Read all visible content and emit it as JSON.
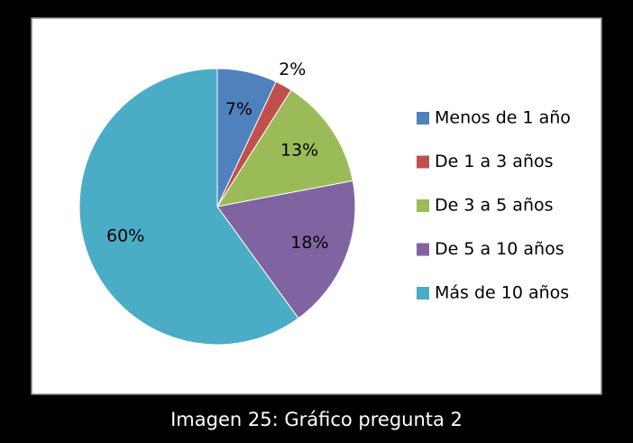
{
  "chart_data": {
    "type": "pie",
    "categories": [
      "Menos de 1 año",
      "De 1 a 3 años",
      "De 3 a 5 años",
      "De 5 a 10 años",
      "Más de 10 años"
    ],
    "values": [
      7,
      2,
      13,
      18,
      60
    ],
    "value_labels": [
      "7%",
      "2%",
      "13%",
      "18%",
      "60%"
    ],
    "colors": [
      "#4f81bd",
      "#c0504d",
      "#9bbb59",
      "#8064a2",
      "#4bacc6"
    ],
    "legend": "right"
  },
  "caption": "Imagen 25: Gráfico pregunta 2"
}
